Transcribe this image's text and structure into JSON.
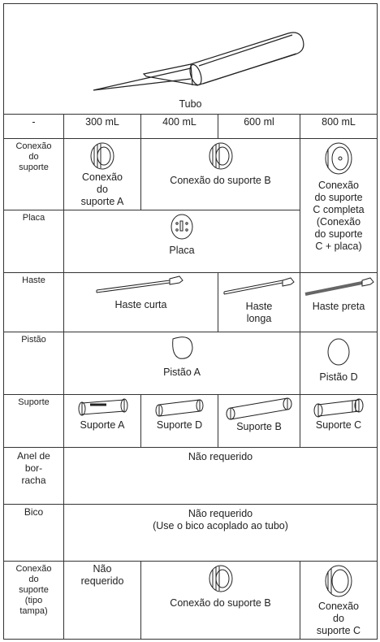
{
  "header": {
    "title": "Tubo"
  },
  "table": {
    "columns": [
      "-",
      "300 mL",
      "400 mL",
      "600 ml",
      "800 mL"
    ],
    "rows": [
      {
        "label": [
          "Conexão",
          "do",
          "suporte"
        ],
        "cells": [
          [
            "Conexão",
            "do",
            "suporte A"
          ],
          [
            "Conexão do suporte B"
          ],
          [
            "Conexão",
            "do suporte",
            "C completa",
            "(Conexão",
            "do suporte",
            "C + placa)"
          ]
        ]
      },
      {
        "label": [
          "Placa"
        ],
        "cells": [
          [
            "Placa"
          ]
        ]
      },
      {
        "label": [
          "Haste"
        ],
        "cells": [
          [
            "Haste curta"
          ],
          [
            "Haste",
            "longa"
          ],
          [
            "Haste preta"
          ]
        ]
      },
      {
        "label": [
          "Pistão"
        ],
        "cells": [
          [
            "Pistão A"
          ],
          [
            "Pistão D"
          ]
        ]
      },
      {
        "label": [
          "Suporte"
        ],
        "cells": [
          [
            "Suporte A"
          ],
          [
            "Suporte D"
          ],
          [
            "Suporte B"
          ],
          [
            "Suporte C"
          ]
        ]
      },
      {
        "label": [
          "Anel de",
          "bor-",
          "racha"
        ],
        "cells": [
          [
            "Não requerido"
          ]
        ]
      },
      {
        "label": [
          "Bico"
        ],
        "cells": [
          [
            "Não requerido",
            "(Use o bico acoplado ao tubo)"
          ]
        ]
      },
      {
        "label": [
          "Conexão",
          "do",
          "suporte",
          "(tipo",
          "tampa)"
        ],
        "cells": [
          [
            "Não",
            "requerido"
          ],
          [
            "Conexão do suporte B"
          ],
          [
            "Conexão",
            "do",
            "suporte C"
          ]
        ]
      }
    ]
  }
}
